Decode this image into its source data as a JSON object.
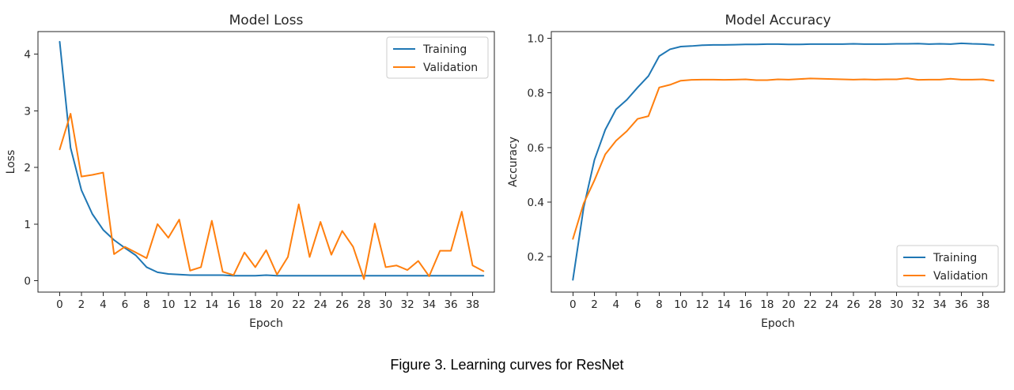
{
  "caption": "Figure 3. Learning curves for ResNet",
  "colors": {
    "training": "#1f77b4",
    "validation": "#ff7f0e"
  },
  "chart_data": [
    {
      "type": "line",
      "title": "Model Loss",
      "xlabel": "Epoch",
      "ylabel": "Loss",
      "xlim": [
        -2,
        40
      ],
      "ylim": [
        -0.2,
        4.4
      ],
      "xticks": [
        0,
        2,
        4,
        6,
        8,
        10,
        12,
        14,
        16,
        18,
        20,
        22,
        24,
        26,
        28,
        30,
        32,
        34,
        36,
        38
      ],
      "yticks": [
        0,
        1,
        2,
        3,
        4
      ],
      "grid": false,
      "legend": "top-right",
      "x": [
        0,
        1,
        2,
        3,
        4,
        5,
        6,
        7,
        8,
        9,
        10,
        11,
        12,
        13,
        14,
        15,
        16,
        17,
        18,
        19,
        20,
        21,
        22,
        23,
        24,
        25,
        26,
        27,
        28,
        29,
        30,
        31,
        32,
        33,
        34,
        35,
        36,
        37,
        38,
        39
      ],
      "series": [
        {
          "name": "Training",
          "values": [
            4.22,
            2.35,
            1.6,
            1.18,
            0.9,
            0.72,
            0.58,
            0.45,
            0.24,
            0.15,
            0.12,
            0.11,
            0.1,
            0.1,
            0.1,
            0.1,
            0.09,
            0.09,
            0.09,
            0.1,
            0.09,
            0.09,
            0.09,
            0.09,
            0.09,
            0.09,
            0.09,
            0.09,
            0.09,
            0.09,
            0.09,
            0.09,
            0.09,
            0.09,
            0.09,
            0.09,
            0.09,
            0.09,
            0.09,
            0.09
          ]
        },
        {
          "name": "Validation",
          "values": [
            2.32,
            2.95,
            1.84,
            1.87,
            1.91,
            0.47,
            0.6,
            0.5,
            0.4,
            1.0,
            0.76,
            1.08,
            0.18,
            0.24,
            1.06,
            0.16,
            0.1,
            0.5,
            0.24,
            0.54,
            0.11,
            0.42,
            1.35,
            0.42,
            1.04,
            0.46,
            0.88,
            0.6,
            0.03,
            1.01,
            0.24,
            0.27,
            0.19,
            0.35,
            0.08,
            0.53,
            0.53,
            1.22,
            0.27,
            0.17
          ]
        }
      ]
    },
    {
      "type": "line",
      "title": "Model Accuracy",
      "xlabel": "Epoch",
      "ylabel": "Accuracy",
      "xlim": [
        -2,
        40
      ],
      "ylim": [
        0.07,
        1.025
      ],
      "xticks": [
        0,
        2,
        4,
        6,
        8,
        10,
        12,
        14,
        16,
        18,
        20,
        22,
        24,
        26,
        28,
        30,
        32,
        34,
        36,
        38
      ],
      "yticks": [
        0.2,
        0.4,
        0.6,
        0.8,
        1.0
      ],
      "ytick_labels": [
        "0.2",
        "0.4",
        "0.6",
        "0.8",
        "1.0"
      ],
      "grid": false,
      "legend": "bottom-right",
      "x": [
        0,
        1,
        2,
        3,
        4,
        5,
        6,
        7,
        8,
        9,
        10,
        11,
        12,
        13,
        14,
        15,
        16,
        17,
        18,
        19,
        20,
        21,
        22,
        23,
        24,
        25,
        26,
        27,
        28,
        29,
        30,
        31,
        32,
        33,
        34,
        35,
        36,
        37,
        38,
        39
      ],
      "series": [
        {
          "name": "Training",
          "values": [
            0.115,
            0.38,
            0.555,
            0.665,
            0.74,
            0.775,
            0.82,
            0.862,
            0.935,
            0.96,
            0.97,
            0.972,
            0.975,
            0.976,
            0.976,
            0.977,
            0.978,
            0.978,
            0.979,
            0.979,
            0.978,
            0.978,
            0.979,
            0.979,
            0.979,
            0.979,
            0.98,
            0.979,
            0.979,
            0.979,
            0.98,
            0.98,
            0.981,
            0.979,
            0.98,
            0.979,
            0.982,
            0.98,
            0.979,
            0.976
          ]
        },
        {
          "name": "Validation",
          "values": [
            0.265,
            0.395,
            0.48,
            0.575,
            0.625,
            0.66,
            0.705,
            0.715,
            0.82,
            0.83,
            0.845,
            0.848,
            0.849,
            0.849,
            0.848,
            0.849,
            0.85,
            0.847,
            0.847,
            0.85,
            0.849,
            0.851,
            0.853,
            0.852,
            0.851,
            0.85,
            0.849,
            0.85,
            0.849,
            0.85,
            0.85,
            0.854,
            0.848,
            0.849,
            0.849,
            0.852,
            0.849,
            0.849,
            0.85,
            0.845
          ]
        }
      ]
    }
  ]
}
